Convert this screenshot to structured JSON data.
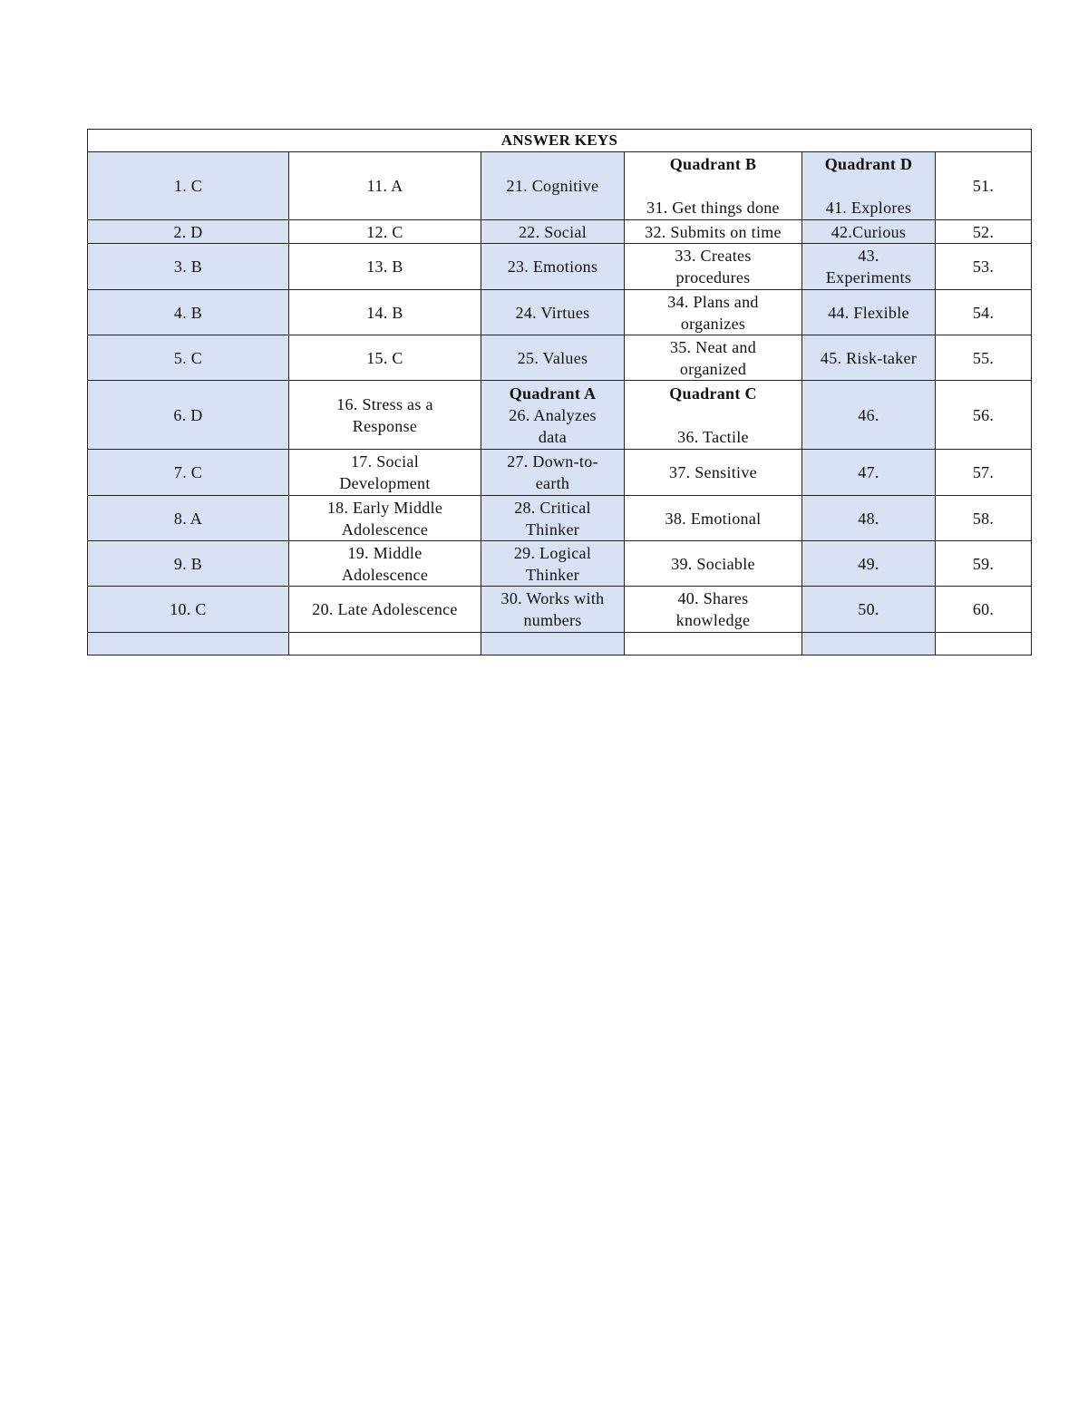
{
  "title": "ANSWER KEYS",
  "shaded_color": "#d9e2f3",
  "shaded_columns": [
    0,
    2,
    4
  ],
  "rows": [
    [
      {
        "t": "1. C"
      },
      {
        "t": "11. A"
      },
      {
        "t": "21. Cognitive"
      },
      {
        "h": "Quadrant B",
        "t": "\n31. Get things done"
      },
      {
        "h": "Quadrant D",
        "t": "\n41. Explores"
      },
      {
        "t": "51."
      }
    ],
    [
      {
        "t": "2. D"
      },
      {
        "t": "12. C"
      },
      {
        "t": "22. Social"
      },
      {
        "t": "32. Submits on time"
      },
      {
        "t": "42.Curious"
      },
      {
        "t": "52."
      }
    ],
    [
      {
        "t": "3. B"
      },
      {
        "t": "13. B"
      },
      {
        "t": "23. Emotions"
      },
      {
        "t": "33. Creates\nprocedures"
      },
      {
        "t": "43.\nExperiments"
      },
      {
        "t": "53."
      }
    ],
    [
      {
        "t": "4. B"
      },
      {
        "t": "14. B"
      },
      {
        "t": "24. Virtues"
      },
      {
        "t": "34. Plans and\norganizes"
      },
      {
        "t": "44. Flexible"
      },
      {
        "t": "54."
      }
    ],
    [
      {
        "t": "5. C"
      },
      {
        "t": "15. C"
      },
      {
        "t": "25. Values"
      },
      {
        "t": "35. Neat and\norganized"
      },
      {
        "t": "45. Risk-taker"
      },
      {
        "t": "55."
      }
    ],
    [
      {
        "t": "6. D"
      },
      {
        "t": "16. Stress as a\nResponse"
      },
      {
        "h": "Quadrant A",
        "t": "26. Analyzes\ndata"
      },
      {
        "h": "Quadrant C",
        "t": "\n36. Tactile"
      },
      {
        "t": "46."
      },
      {
        "t": "56."
      }
    ],
    [
      {
        "t": "7. C"
      },
      {
        "t": "17. Social\nDevelopment"
      },
      {
        "t": "27. Down-to-\nearth"
      },
      {
        "t": "37. Sensitive"
      },
      {
        "t": "47."
      },
      {
        "t": "57."
      }
    ],
    [
      {
        "t": "8. A"
      },
      {
        "t": "18. Early Middle\nAdolescence"
      },
      {
        "t": "28. Critical\nThinker"
      },
      {
        "t": "38. Emotional"
      },
      {
        "t": "48."
      },
      {
        "t": "58."
      }
    ],
    [
      {
        "t": "9. B"
      },
      {
        "t": "19. Middle\nAdolescence"
      },
      {
        "t": "29. Logical\nThinker"
      },
      {
        "t": "39. Sociable"
      },
      {
        "t": "49."
      },
      {
        "t": "59."
      }
    ],
    [
      {
        "t": "10. C"
      },
      {
        "t": "20. Late Adolescence"
      },
      {
        "t": "30. Works with\nnumbers"
      },
      {
        "t": "40. Shares\nknowledge"
      },
      {
        "t": "50."
      },
      {
        "t": "60."
      }
    ],
    [
      {
        "t": ""
      },
      {
        "t": ""
      },
      {
        "t": ""
      },
      {
        "t": ""
      },
      {
        "t": ""
      },
      {
        "t": ""
      }
    ]
  ]
}
